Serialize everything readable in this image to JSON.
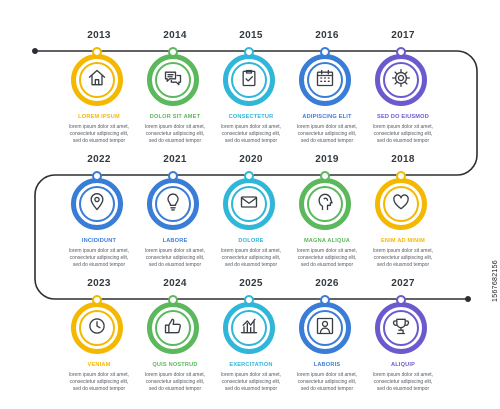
{
  "description_lines": [
    "lorem ipsum dolor sit amet,",
    "consectetur adipiscing elit,",
    "sed do eiusmod tempor"
  ],
  "watermark": "1567682156",
  "rows": [
    {
      "items": [
        {
          "year": "2013",
          "label": "LOREM IPSUM",
          "color": "#f5b800",
          "icon": "home-icon"
        },
        {
          "year": "2014",
          "label": "DOLOR SIT AMET",
          "color": "#5cb85c",
          "icon": "chat-icon"
        },
        {
          "year": "2015",
          "label": "CONSECTETUR",
          "color": "#2fb6d8",
          "icon": "clipboard-check-icon"
        },
        {
          "year": "2016",
          "label": "ADIPISCING ELIT",
          "color": "#3a7dd6",
          "icon": "calendar-icon"
        },
        {
          "year": "2017",
          "label": "SED DO EIUSMOD",
          "color": "#6a5acd",
          "icon": "gear-icon"
        }
      ]
    },
    {
      "items": [
        {
          "year": "2022",
          "label": "INCIDIDUNT",
          "color": "#3a7dd6",
          "icon": "map-pin-icon"
        },
        {
          "year": "2021",
          "label": "LABORE",
          "color": "#3a7dd6",
          "icon": "lightbulb-icon"
        },
        {
          "year": "2020",
          "label": "DOLORE",
          "color": "#2fb6d8",
          "icon": "envelope-icon"
        },
        {
          "year": "2019",
          "label": "MAGNA ALIQUA",
          "color": "#5cb85c",
          "icon": "head-icon"
        },
        {
          "year": "2018",
          "label": "ENIM AD MINIM",
          "color": "#f5b800",
          "icon": "heart-icon"
        }
      ]
    },
    {
      "items": [
        {
          "year": "2023",
          "label": "VENIAM",
          "color": "#f5b800",
          "icon": "clock-icon"
        },
        {
          "year": "2024",
          "label": "QUIS NOSTRUD",
          "color": "#5cb85c",
          "icon": "thumbs-up-icon"
        },
        {
          "year": "2025",
          "label": "EXERCITATION",
          "color": "#2fb6d8",
          "icon": "bar-chart-icon"
        },
        {
          "year": "2026",
          "label": "LABORIS",
          "color": "#3a7dd6",
          "icon": "user-icon"
        },
        {
          "year": "2027",
          "label": "ALIQUIP",
          "color": "#6a5acd",
          "icon": "trophy-icon"
        }
      ]
    }
  ]
}
